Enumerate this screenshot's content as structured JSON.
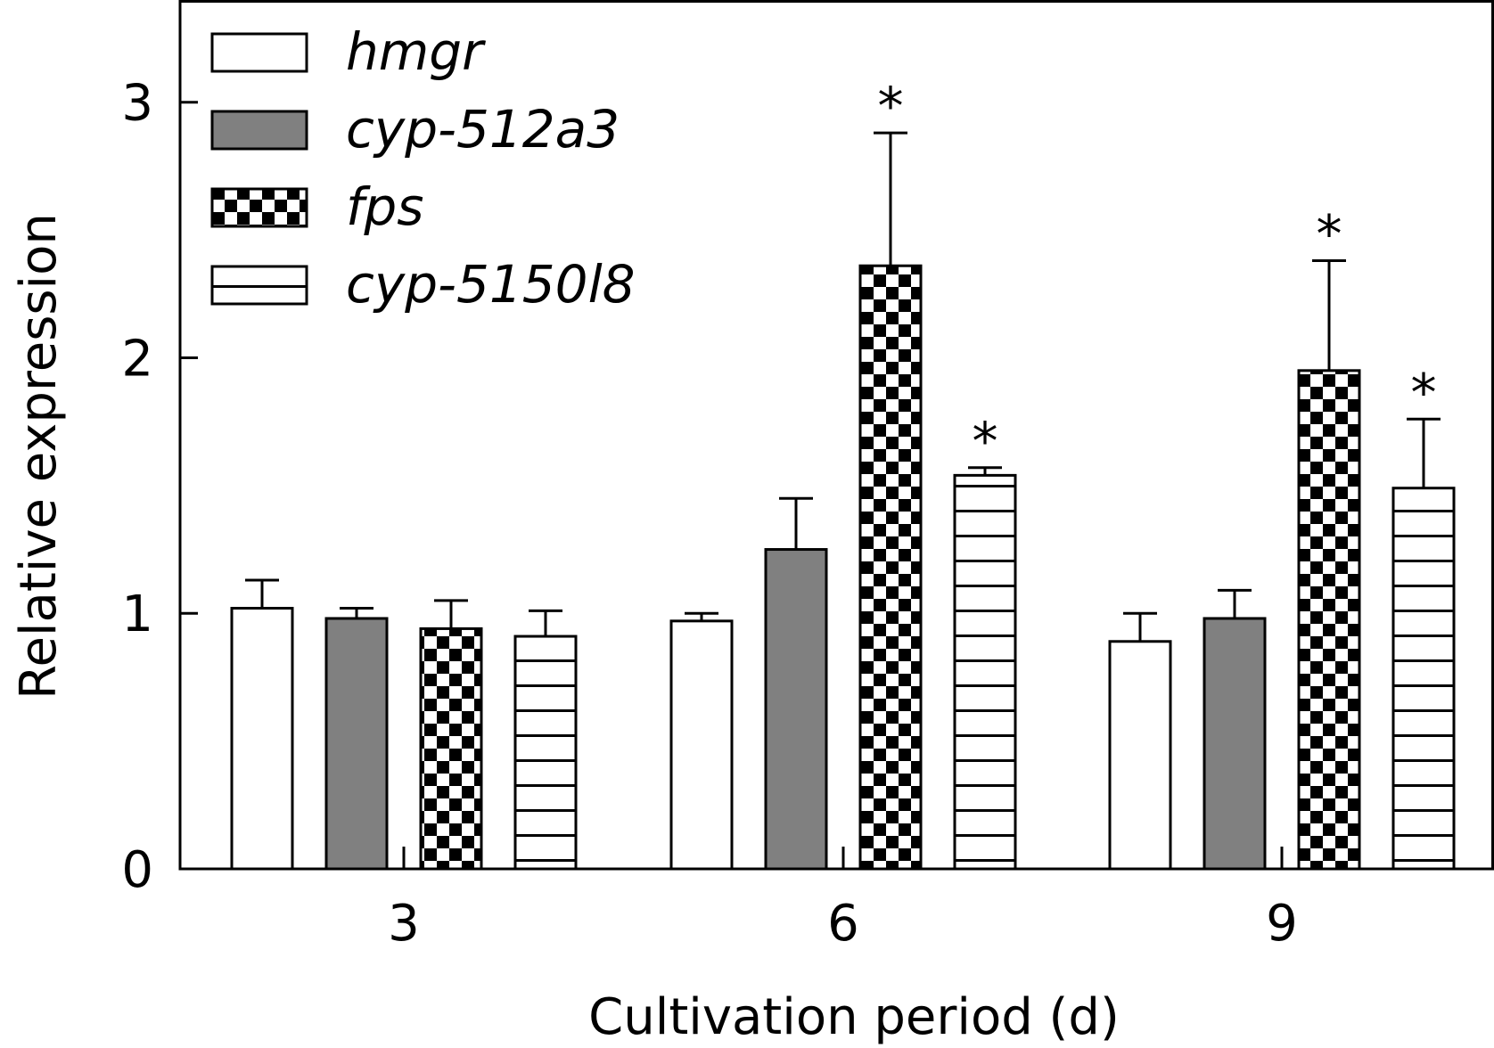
{
  "chart_data": {
    "type": "bar",
    "title": "",
    "xlabel": "Cultivation period (d)",
    "ylabel": "Relative expression",
    "categories": [
      "3",
      "6",
      "9"
    ],
    "ylim": [
      0,
      3.4
    ],
    "yticks": [
      "0",
      "1",
      "2",
      "3"
    ],
    "legend_position": "top-left",
    "series": [
      {
        "name": "hmgr",
        "pattern": "white",
        "values": [
          1.02,
          0.97,
          0.89
        ],
        "errors": [
          0.11,
          0.03,
          0.11
        ],
        "significant": [
          false,
          false,
          false
        ]
      },
      {
        "name": "cyp-512a3",
        "pattern": "gray",
        "values": [
          0.98,
          1.25,
          0.98
        ],
        "errors": [
          0.04,
          0.2,
          0.11
        ],
        "significant": [
          false,
          false,
          false
        ]
      },
      {
        "name": "fps",
        "pattern": "checker",
        "values": [
          0.94,
          2.36,
          1.95
        ],
        "errors": [
          0.11,
          0.52,
          0.43
        ],
        "significant": [
          false,
          true,
          true
        ]
      },
      {
        "name": "cyp-5150l8",
        "pattern": "horizontal-lines",
        "values": [
          0.91,
          1.54,
          1.49
        ],
        "errors": [
          0.1,
          0.03,
          0.27
        ],
        "significant": [
          false,
          true,
          true
        ]
      }
    ],
    "significance_marker": "*"
  },
  "colors": {
    "gray_fill": "#808080",
    "stroke": "#000000",
    "background": "#ffffff"
  }
}
